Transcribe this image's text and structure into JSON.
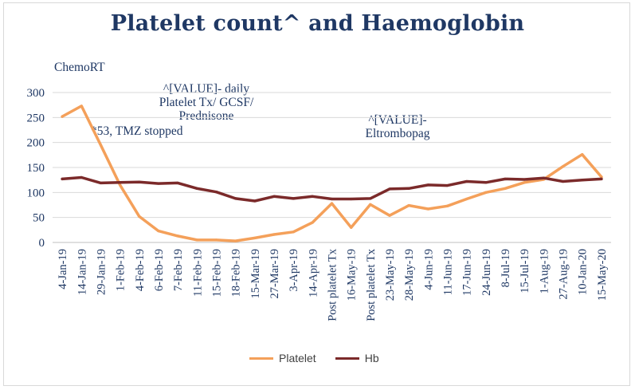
{
  "chart_data": {
    "type": "line",
    "title": "Platelet count^ and Haemoglobin",
    "xlabel": "",
    "ylabel": "",
    "ylim": [
      0,
      300
    ],
    "yticks": [
      0,
      50,
      100,
      150,
      200,
      250,
      300
    ],
    "grid": true,
    "legend_position": "bottom",
    "categories": [
      "4-Jan-19",
      "14-Jan-19",
      "29-Jan-19",
      "1-Feb-19",
      "4-Feb-19",
      "6-Feb-19",
      "7-Feb-19",
      "11-Feb-19",
      "15-Feb-19",
      "18-Feb-19",
      "15-Mar-19",
      "27-Mar-19",
      "3-Apr-19",
      "14-Apr-19",
      "Post platelet Tx",
      "16-May-19",
      "Post platelet Tx",
      "23-May-19",
      "28-May-19",
      "4-Jun-19",
      "11-Jun-19",
      "17-Jun-19",
      "24-Jun-19",
      "8-Jul-19",
      "15-Jul-19",
      "1-Aug-19",
      "27-Aug-19",
      "10-Jan-20",
      "15-May-20"
    ],
    "series": [
      {
        "name": "Platelet",
        "color": "#f4a05a",
        "values": [
          252,
          273,
          195,
          115,
          52,
          23,
          13,
          5,
          5,
          3,
          9,
          16,
          21,
          40,
          78,
          30,
          76,
          54,
          74,
          67,
          73,
          87,
          100,
          108,
          120,
          126,
          152,
          176,
          131
        ]
      },
      {
        "name": "Hb",
        "color": "#7b2a2a",
        "values": [
          127,
          130,
          119,
          120,
          121,
          118,
          119,
          108,
          101,
          88,
          83,
          92,
          88,
          92,
          87,
          87,
          88,
          107,
          108,
          115,
          114,
          122,
          120,
          127,
          126,
          129,
          122,
          125,
          127
        ]
      }
    ],
    "annotations": [
      {
        "text": "ChemoRT"
      },
      {
        "text": "*53, TMZ stopped"
      },
      {
        "text": "^[VALUE]- daily\nPlatelet Tx/ GCSF/\nPrednisone"
      },
      {
        "text": "^[VALUE]-\nEltrombopag"
      }
    ]
  }
}
